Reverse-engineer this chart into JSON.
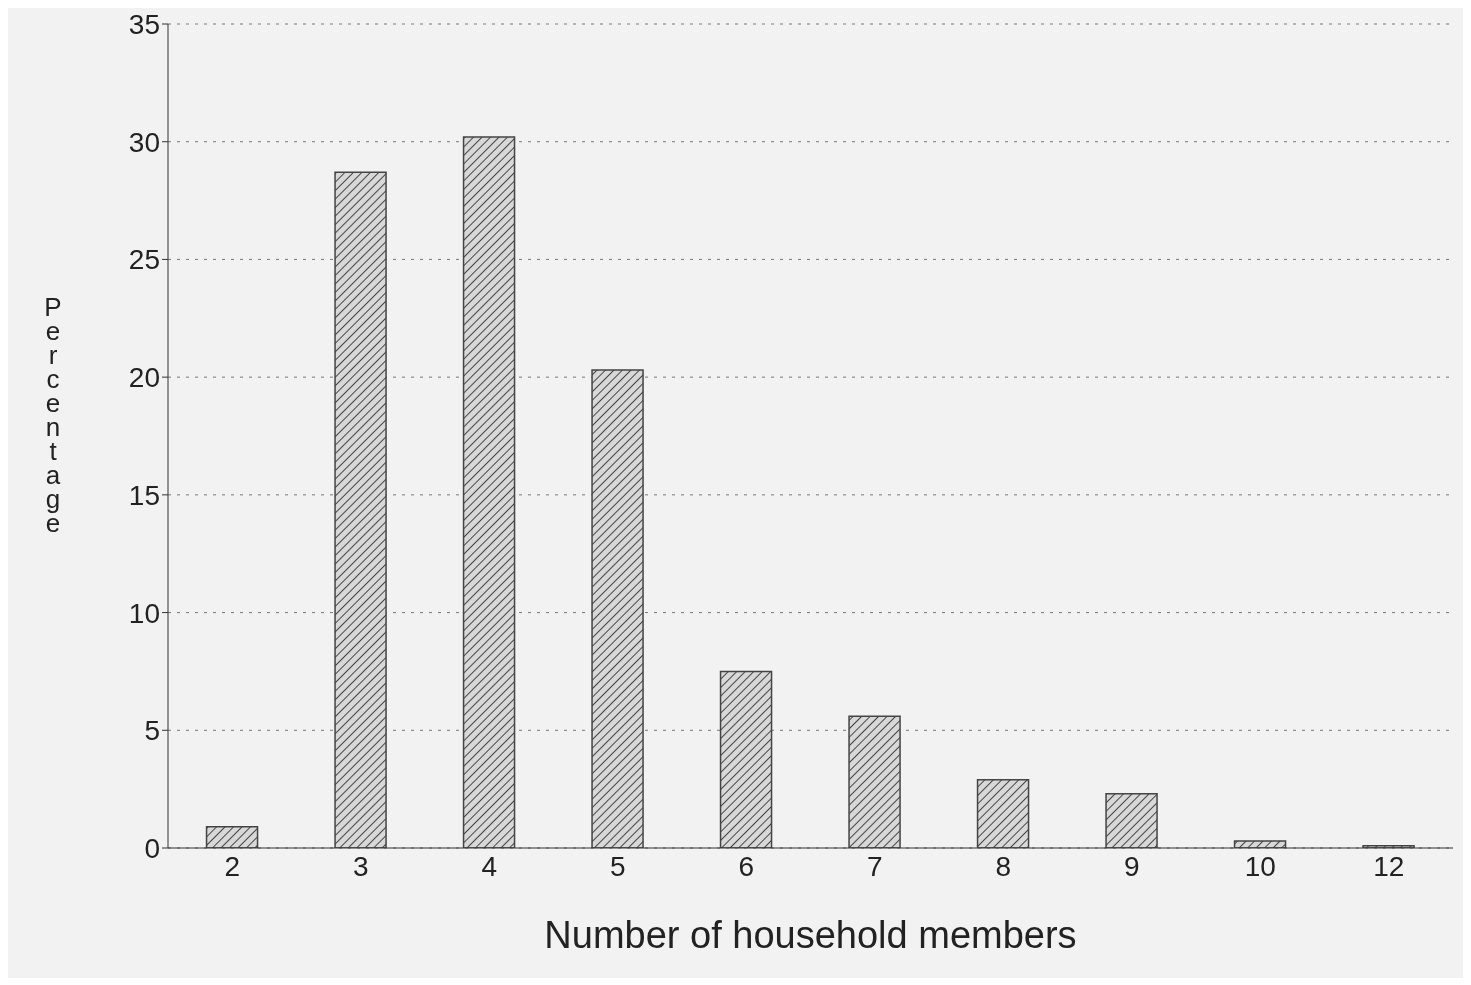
{
  "chart_data": {
    "type": "bar",
    "xlabel": "Number of household members",
    "ylabel": "Percentage",
    "categories": [
      "2",
      "3",
      "4",
      "5",
      "6",
      "7",
      "8",
      "9",
      "10",
      "12"
    ],
    "values": [
      0.9,
      28.7,
      30.2,
      20.3,
      7.5,
      5.6,
      2.9,
      2.3,
      0.3,
      0.1
    ],
    "color": "#444444",
    "ylim": [
      0,
      35
    ],
    "yticks": [
      0,
      5,
      10,
      15,
      20,
      25,
      30,
      35
    ],
    "grid": "y"
  }
}
